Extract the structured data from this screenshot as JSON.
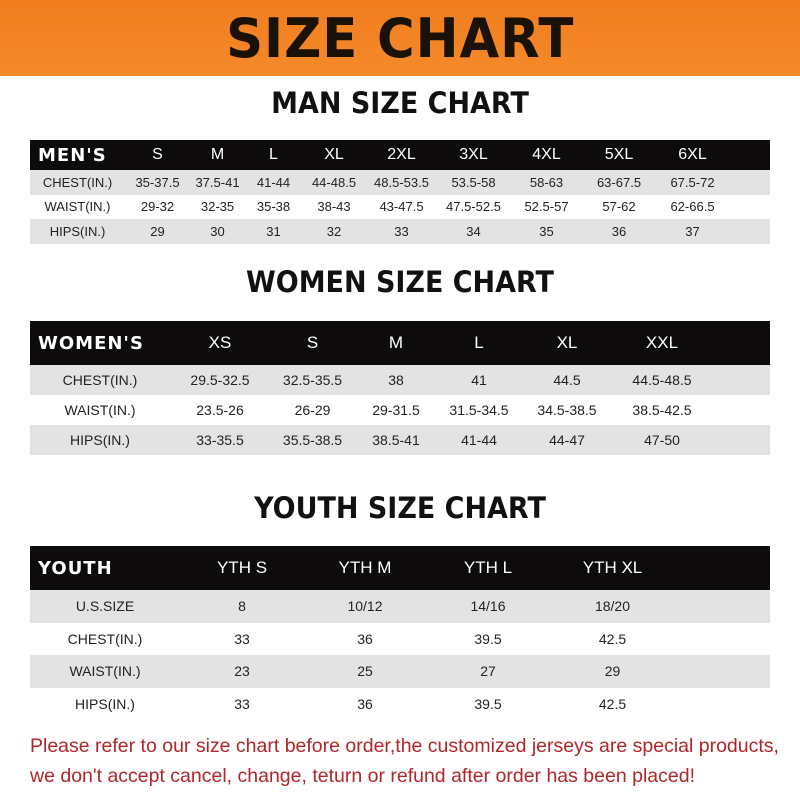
{
  "title": "SIZE CHART",
  "tables": [
    {
      "id": "men",
      "title": "MAN SIZE CHART",
      "header": [
        "MEN'S",
        "S",
        "M",
        "L",
        "XL",
        "2XL",
        "3XL",
        "4XL",
        "5XL",
        "6XL"
      ],
      "rows": [
        [
          "CHEST(IN.)",
          "35-37.5",
          "37.5-41",
          "41-44",
          "44-48.5",
          "48.5-53.5",
          "53.5-58",
          "58-63",
          "63-67.5",
          "67.5-72"
        ],
        [
          "WAIST(IN.)",
          "29-32",
          "32-35",
          "35-38",
          "38-43",
          "43-47.5",
          "47.5-52.5",
          "52.5-57",
          "57-62",
          "62-66.5"
        ],
        [
          "HIPS(IN.)",
          "29",
          "30",
          "31",
          "32",
          "33",
          "34",
          "35",
          "36",
          "37"
        ]
      ]
    },
    {
      "id": "women",
      "title": "WOMEN SIZE CHART",
      "header": [
        "WOMEN'S",
        "XS",
        "S",
        "M",
        "L",
        "XL",
        "XXL"
      ],
      "rows": [
        [
          "CHEST(IN.)",
          "29.5-32.5",
          "32.5-35.5",
          "38",
          "41",
          "44.5",
          "44.5-48.5"
        ],
        [
          "WAIST(IN.)",
          "23.5-26",
          "26-29",
          "29-31.5",
          "31.5-34.5",
          "34.5-38.5",
          "38.5-42.5"
        ],
        [
          "HIPS(IN.)",
          "33-35.5",
          "35.5-38.5",
          "38.5-41",
          "41-44",
          "44-47",
          "47-50"
        ]
      ]
    },
    {
      "id": "youth",
      "title": "YOUTH SIZE CHART",
      "header": [
        "YOUTH",
        "YTH S",
        "YTH M",
        "YTH L",
        "YTH XL"
      ],
      "rows": [
        [
          "U.S.SIZE",
          "8",
          "10/12",
          "14/16",
          "18/20"
        ],
        [
          "CHEST(IN.)",
          "33",
          "36",
          "39.5",
          "42.5"
        ],
        [
          "WAIST(IN.)",
          "23",
          "25",
          "27",
          "29"
        ],
        [
          "HIPS(IN.)",
          "33",
          "36",
          "39.5",
          "42.5"
        ]
      ]
    }
  ],
  "note": {
    "line1": "Please refer to our size chart before order,the customized jerseys are special products,",
    "line2": "we don't accept cancel, change, teturn or refund after order has been placed!"
  },
  "colors": {
    "banner": "#f07d1e",
    "header_row": "#0d0b0b",
    "stripe": "#e3e3e3",
    "note": "#b0262a"
  }
}
